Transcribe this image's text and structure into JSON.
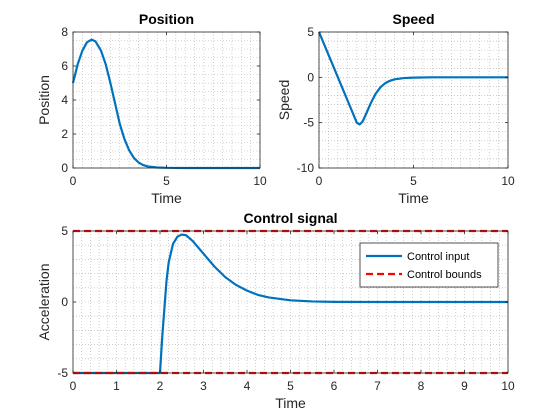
{
  "colors": {
    "data": "#0072BD",
    "bounds": "#FF0000",
    "axis": "#262626",
    "grid": "#B0B0B0"
  },
  "chart_data": [
    {
      "id": "position",
      "type": "line",
      "title": "Position",
      "xlabel": "Time",
      "ylabel": "Position",
      "xlim": [
        0,
        10
      ],
      "ylim": [
        0,
        8
      ],
      "xticks": [
        0,
        5,
        10
      ],
      "yticks": [
        0,
        2,
        4,
        6,
        8
      ],
      "grid": true,
      "series": [
        {
          "x": [
            0,
            0.25,
            0.5,
            0.75,
            1.0,
            1.2,
            1.5,
            1.75,
            2.0,
            2.25,
            2.5,
            2.75,
            3.0,
            3.25,
            3.5,
            3.75,
            4.0,
            4.5,
            5.0,
            6.0,
            7.0,
            8.0,
            9.0,
            10.0
          ],
          "y": [
            5.0,
            6.1,
            6.9,
            7.4,
            7.55,
            7.45,
            6.9,
            6.1,
            5.0,
            3.8,
            2.6,
            1.7,
            1.05,
            0.6,
            0.33,
            0.17,
            0.09,
            0.03,
            0.01,
            0,
            0,
            0,
            0,
            0
          ]
        }
      ]
    },
    {
      "id": "speed",
      "type": "line",
      "title": "Speed",
      "xlabel": "Time",
      "ylabel": "Speed",
      "xlim": [
        0,
        10
      ],
      "ylim": [
        -10,
        5
      ],
      "xticks": [
        0,
        5,
        10
      ],
      "yticks": [
        -10,
        -5,
        0,
        5
      ],
      "grid": true,
      "series": [
        {
          "x": [
            0,
            0.5,
            1.0,
            1.5,
            2.0,
            2.15,
            2.3,
            2.5,
            2.75,
            3.0,
            3.25,
            3.5,
            3.75,
            4.0,
            4.5,
            5.0,
            6.0,
            7.0,
            8.0,
            9.0,
            10.0
          ],
          "y": [
            5.0,
            2.5,
            0.0,
            -2.5,
            -5.0,
            -5.2,
            -4.9,
            -4.0,
            -2.8,
            -1.8,
            -1.1,
            -0.65,
            -0.38,
            -0.22,
            -0.08,
            -0.03,
            0,
            0,
            0,
            0,
            0
          ]
        }
      ]
    },
    {
      "id": "control",
      "type": "line",
      "title": "Control signal",
      "xlabel": "Time",
      "ylabel": "Acceleration",
      "xlim": [
        0,
        10
      ],
      "ylim": [
        -5,
        5
      ],
      "xticks": [
        0,
        1,
        2,
        3,
        4,
        5,
        6,
        7,
        8,
        9,
        10
      ],
      "yticks": [
        -5,
        0,
        5
      ],
      "grid": true,
      "legend": "top-right",
      "series": [
        {
          "name": "Control input",
          "x": [
            0,
            2.0,
            2.05,
            2.1,
            2.15,
            2.2,
            2.3,
            2.4,
            2.5,
            2.6,
            2.75,
            3.0,
            3.25,
            3.5,
            3.75,
            4.0,
            4.25,
            4.5,
            5.0,
            5.5,
            6.0,
            7.0,
            8.0,
            9.0,
            10.0
          ],
          "y": [
            -5,
            -5,
            -2.5,
            -0.5,
            1.5,
            2.8,
            4.1,
            4.6,
            4.75,
            4.7,
            4.3,
            3.4,
            2.5,
            1.75,
            1.2,
            0.8,
            0.5,
            0.32,
            0.12,
            0.04,
            0.01,
            0,
            0,
            0,
            0
          ]
        },
        {
          "name": "Control bounds",
          "style": "dashed",
          "x": [
            0,
            10
          ],
          "y": [
            5,
            5
          ]
        },
        {
          "name": "",
          "style": "dashed",
          "x": [
            0,
            10
          ],
          "y": [
            -5,
            -5
          ]
        }
      ]
    }
  ]
}
